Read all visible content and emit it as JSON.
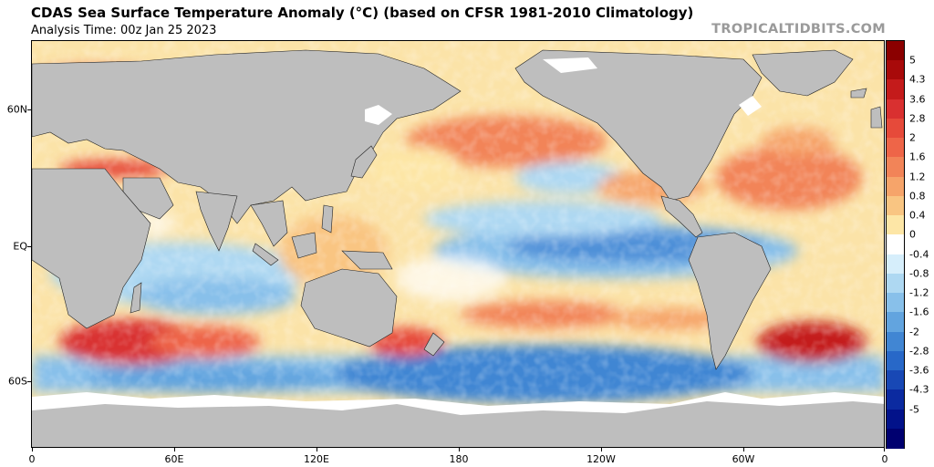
{
  "header": {
    "title": "CDAS Sea Surface Temperature Anomaly (°C) (based on CFSR 1981-2010 Climatology)",
    "subtitle": "Analysis Time: 00z Jan 25 2023",
    "brand": "TROPICALTIDBITS.COM"
  },
  "axes": {
    "lat_labels": [
      "60N",
      "EQ",
      "60S"
    ],
    "lon_labels": [
      "0",
      "60E",
      "120E",
      "180",
      "120W",
      "60W",
      "0"
    ]
  },
  "colorbar": {
    "labels": [
      "5",
      "4.3",
      "3.6",
      "2.8",
      "2",
      "1.6",
      "1.2",
      "0.8",
      "0.4",
      "0",
      "-0.4",
      "-0.8",
      "-1.2",
      "-1.6",
      "-2",
      "-2.8",
      "-3.6",
      "-4.3",
      "-5"
    ],
    "colors": [
      "#8b0000",
      "#a80a0a",
      "#c41b1b",
      "#d93030",
      "#e64a3a",
      "#ee6548",
      "#f28458",
      "#f6a46a",
      "#f9c582",
      "#fde6a6",
      "#ffffff",
      "#d6eefb",
      "#aed8f2",
      "#88c0ea",
      "#62a4df",
      "#4186d3",
      "#2868c8",
      "#1848b5",
      "#0b2aa0",
      "#02128a",
      "#000070"
    ]
  },
  "colors": {
    "land": "#bebebe",
    "ice": "#ffffff",
    "brand_gray": "#9a9a9a"
  }
}
